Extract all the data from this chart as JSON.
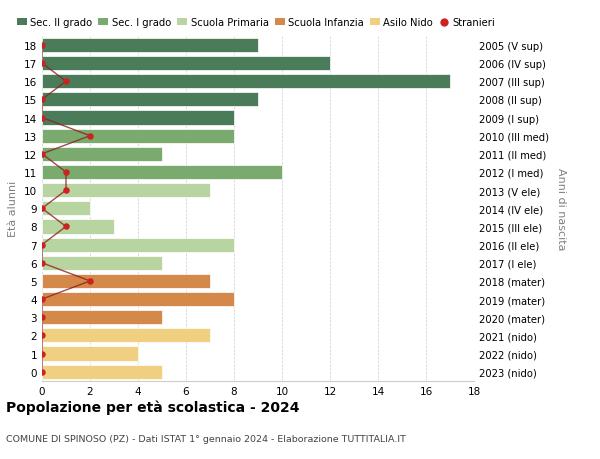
{
  "ages": [
    18,
    17,
    16,
    15,
    14,
    13,
    12,
    11,
    10,
    9,
    8,
    7,
    6,
    5,
    4,
    3,
    2,
    1,
    0
  ],
  "bar_values": [
    9,
    12,
    17,
    9,
    8,
    8,
    5,
    10,
    7,
    2,
    3,
    8,
    5,
    7,
    8,
    5,
    7,
    4,
    5
  ],
  "bar_colors": [
    "#4a7c59",
    "#4a7c59",
    "#4a7c59",
    "#4a7c59",
    "#4a7c59",
    "#7aaa6e",
    "#7aaa6e",
    "#7aaa6e",
    "#b8d4a0",
    "#b8d4a0",
    "#b8d4a0",
    "#b8d4a0",
    "#b8d4a0",
    "#d4894a",
    "#d4894a",
    "#d4894a",
    "#f0d080",
    "#f0d080",
    "#f0d080"
  ],
  "right_labels": [
    "2005 (V sup)",
    "2006 (IV sup)",
    "2007 (III sup)",
    "2008 (II sup)",
    "2009 (I sup)",
    "2010 (III med)",
    "2011 (II med)",
    "2012 (I med)",
    "2013 (V ele)",
    "2014 (IV ele)",
    "2015 (III ele)",
    "2016 (II ele)",
    "2017 (I ele)",
    "2018 (mater)",
    "2019 (mater)",
    "2020 (mater)",
    "2021 (nido)",
    "2022 (nido)",
    "2023 (nido)"
  ],
  "legend_labels": [
    "Sec. II grado",
    "Sec. I grado",
    "Scuola Primaria",
    "Scuola Infanzia",
    "Asilo Nido",
    "Stranieri"
  ],
  "legend_colors": [
    "#4a7c59",
    "#7aaa6e",
    "#b8d4a0",
    "#d4894a",
    "#f0d080",
    "#cc2222"
  ],
  "title": "Popolazione per età scolastica - 2024",
  "subtitle": "COMUNE DI SPINOSO (PZ) - Dati ISTAT 1° gennaio 2024 - Elaborazione TUTTITALIA.IT",
  "xlabel_left": "Età alunni",
  "xlabel_right": "Anni di nascita",
  "stranieri_x": [
    0,
    0,
    1,
    0,
    0,
    2,
    0,
    1,
    1,
    0,
    1,
    0,
    0,
    2,
    0,
    0,
    0,
    0,
    0
  ],
  "stranieri_color": "#cc2222",
  "stranieri_line_color": "#8b2020"
}
